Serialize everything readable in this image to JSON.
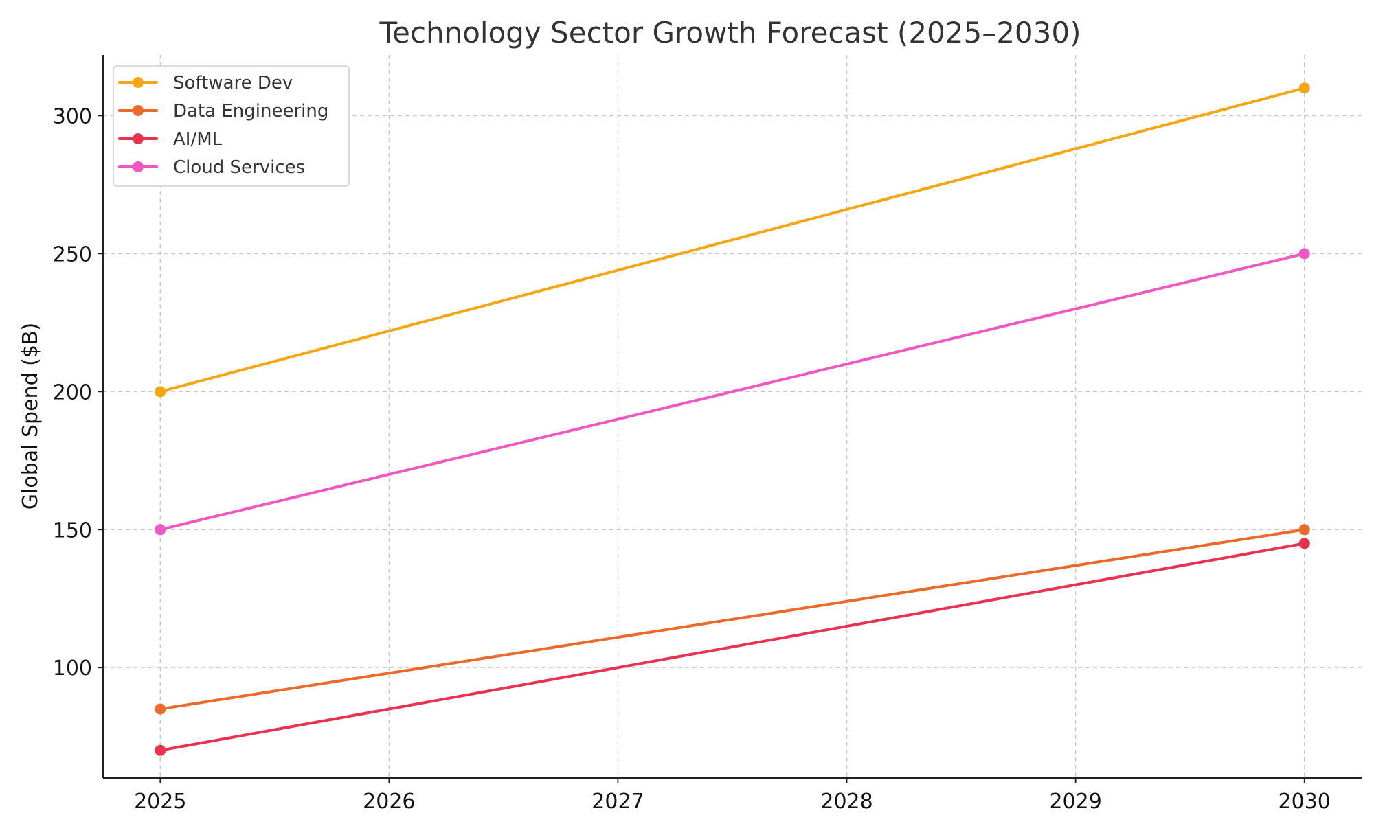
{
  "chart_data": {
    "type": "line",
    "title": "Technology Sector Growth Forecast (2025–2030)",
    "xlabel": "",
    "ylabel": "Global Spend ($B)",
    "x": [
      2025,
      2030
    ],
    "x_ticks": [
      "2025",
      "2026",
      "2027",
      "2028",
      "2029",
      "2030"
    ],
    "y_ticks": [
      "100",
      "150",
      "200",
      "250",
      "300"
    ],
    "xlim": [
      2024.75,
      2030.25
    ],
    "ylim": [
      60,
      322
    ],
    "grid": true,
    "legend_position": "top-left",
    "series": [
      {
        "name": "Software Dev",
        "color": "#F5A612",
        "values": [
          200,
          310
        ]
      },
      {
        "name": "Data Engineering",
        "color": "#EA6A2A",
        "values": [
          85,
          150
        ]
      },
      {
        "name": "AI/ML",
        "color": "#E8334F",
        "values": [
          70,
          145
        ]
      },
      {
        "name": "Cloud Services",
        "color": "#EF58C2",
        "values": [
          150,
          250
        ]
      }
    ]
  }
}
